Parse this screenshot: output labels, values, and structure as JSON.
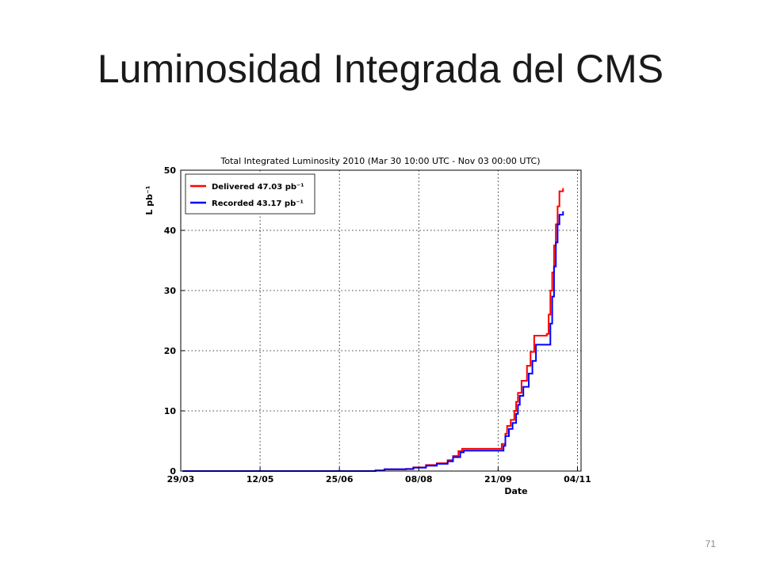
{
  "slide": {
    "title": "Luminosidad Integrada del CMS",
    "page_number": "71"
  },
  "chart_data": {
    "type": "line",
    "title": "Total Integrated Luminosity 2010 (Mar 30 10:00 UTC - Nov 03 00:00 UTC)",
    "xlabel": "Date",
    "ylabel": "L pb⁻¹",
    "xlim": [
      "2010-03-29",
      "2010-11-06"
    ],
    "ylim": [
      0,
      50
    ],
    "grid": true,
    "legend_position": "top-left",
    "x_ticks": [
      {
        "date": "2010-03-29",
        "label": "29/03"
      },
      {
        "date": "2010-05-12",
        "label": "12/05"
      },
      {
        "date": "2010-06-25",
        "label": "25/06"
      },
      {
        "date": "2010-08-08",
        "label": "08/08"
      },
      {
        "date": "2010-09-21",
        "label": "21/09"
      },
      {
        "date": "2010-11-04",
        "label": "04/11"
      }
    ],
    "y_ticks": [
      0,
      10,
      20,
      30,
      40,
      50
    ],
    "series": [
      {
        "name": "Delivered 47.03 pb⁻¹",
        "color": "#ff0000",
        "points": [
          [
            "2010-03-30",
            0
          ],
          [
            "2010-07-15",
            0.1
          ],
          [
            "2010-07-20",
            0.3
          ],
          [
            "2010-08-01",
            0.35
          ],
          [
            "2010-08-05",
            0.6
          ],
          [
            "2010-08-12",
            1.0
          ],
          [
            "2010-08-18",
            1.3
          ],
          [
            "2010-08-24",
            1.8
          ],
          [
            "2010-08-27",
            2.5
          ],
          [
            "2010-08-30",
            3.3
          ],
          [
            "2010-09-01",
            3.7
          ],
          [
            "2010-09-22",
            3.7
          ],
          [
            "2010-09-23",
            4.5
          ],
          [
            "2010-09-25",
            6.2
          ],
          [
            "2010-09-26",
            7.5
          ],
          [
            "2010-09-28",
            8.5
          ],
          [
            "2010-09-30",
            10.0
          ],
          [
            "2010-10-01",
            11.5
          ],
          [
            "2010-10-02",
            13.0
          ],
          [
            "2010-10-04",
            15.0
          ],
          [
            "2010-10-07",
            17.5
          ],
          [
            "2010-10-09",
            19.8
          ],
          [
            "2010-10-11",
            22.5
          ],
          [
            "2010-10-18",
            22.8
          ],
          [
            "2010-10-19",
            26.0
          ],
          [
            "2010-10-20",
            30.0
          ],
          [
            "2010-10-21",
            33.0
          ],
          [
            "2010-10-22",
            37.5
          ],
          [
            "2010-10-23",
            41.0
          ],
          [
            "2010-10-24",
            44.0
          ],
          [
            "2010-10-25",
            46.5
          ],
          [
            "2010-10-27",
            47.03
          ]
        ]
      },
      {
        "name": "Recorded 43.17 pb⁻¹",
        "color": "#0000ff",
        "points": [
          [
            "2010-03-30",
            0
          ],
          [
            "2010-07-15",
            0.1
          ],
          [
            "2010-07-20",
            0.3
          ],
          [
            "2010-08-01",
            0.33
          ],
          [
            "2010-08-05",
            0.55
          ],
          [
            "2010-08-12",
            0.9
          ],
          [
            "2010-08-18",
            1.2
          ],
          [
            "2010-08-24",
            1.6
          ],
          [
            "2010-08-27",
            2.3
          ],
          [
            "2010-08-31",
            3.1
          ],
          [
            "2010-09-02",
            3.4
          ],
          [
            "2010-09-22",
            3.4
          ],
          [
            "2010-09-24",
            4.2
          ],
          [
            "2010-09-25",
            5.8
          ],
          [
            "2010-09-27",
            7.0
          ],
          [
            "2010-09-29",
            8.0
          ],
          [
            "2010-10-01",
            9.5
          ],
          [
            "2010-10-02",
            11.0
          ],
          [
            "2010-10-03",
            12.5
          ],
          [
            "2010-10-05",
            14.0
          ],
          [
            "2010-10-08",
            16.2
          ],
          [
            "2010-10-10",
            18.3
          ],
          [
            "2010-10-12",
            21.0
          ],
          [
            "2010-10-19",
            21.0
          ],
          [
            "2010-10-20",
            24.5
          ],
          [
            "2010-10-21",
            29.0
          ],
          [
            "2010-10-22",
            34.0
          ],
          [
            "2010-10-23",
            38.0
          ],
          [
            "2010-10-24",
            41.0
          ],
          [
            "2010-10-25",
            42.6
          ],
          [
            "2010-10-27",
            43.17
          ]
        ]
      }
    ]
  }
}
